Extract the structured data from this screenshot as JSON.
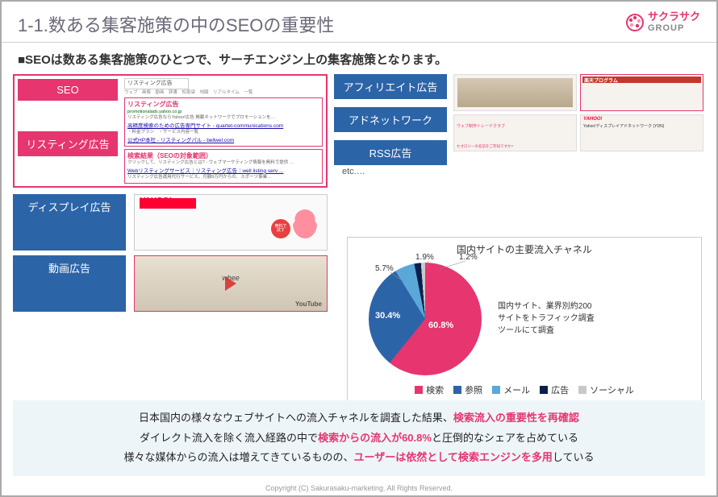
{
  "header": {
    "title": "1-1.数ある集客施策の中のSEOの重要性",
    "logo_main": "サクラサク",
    "logo_sub": "GROUP"
  },
  "subtitle": "■SEOは数ある集客施策のひとつで、サーチエンジン上の集客施策となります。",
  "left_box": {
    "tag_seo": "SEO",
    "tag_listing": "リスティング広告",
    "search_input": "リスティング広告",
    "ad_title": "リスティング広告",
    "ad_url": "promotionalads.yahoo.co.jp",
    "ad_blurb": "リスティング広告ならYahoo!広告 掲載ネットワークでプロモーションを…",
    "ad_link": "高精度検索のための広告専門サイト - quartet-communications.com",
    "ad_link2": "公式HP本社 - リスティングパル - bellwel.com",
    "org_title": "検索結果（SEOの対象範囲）",
    "org_blurb": "クリックして、リスティング広告とは? - ウェブマーケティング情報を無料で提供 …",
    "org_link": "Webリスティングサービス｜リスティング広告｜well listing serv ..."
  },
  "row_display": "ディスプレイ広告",
  "row_video": "動画広告",
  "yahoo_label": "YAHOO!",
  "youtube_label": "YouTube",
  "whee_label": "whee",
  "mid": {
    "affiliate": "アフィリエイト広告",
    "adnetwork": "アドネットワーク",
    "rss": "RSS広告",
    "etc": "etc.…"
  },
  "mini_labels": {
    "a": "楽天プログラム",
    "b": "ウェブ制作トレードクラブ",
    "c": "セオロジーの名前をご存知ですか?",
    "d": "Yahoo!ディスプレイアドネットワーク (YDN)"
  },
  "chart": {
    "title": "国内サイトの主要流入チャネル",
    "note": "国内サイト、業界別約200サイトをトラフィック調査ツールにて調査",
    "type": "pie",
    "slices": [
      {
        "label": "検索",
        "value": 60.8,
        "color": "#e6356f"
      },
      {
        "label": "参照",
        "value": 30.4,
        "color": "#2c64a8"
      },
      {
        "label": "メール",
        "value": 5.7,
        "color": "#5aa8d8"
      },
      {
        "label": "広告",
        "value": 1.9,
        "color": "#0a1f4d"
      },
      {
        "label": "ソーシャル",
        "value": 1.2,
        "color": "#c9c9c9"
      }
    ],
    "legend_labels": [
      "検索",
      "参照",
      "メール",
      "広告",
      "ソーシャル"
    ],
    "value_labels": {
      "a": "60.8%",
      "b": "30.4%",
      "c": "5.7%",
      "d": "1.9%",
      "e": "1.2%"
    },
    "background_color": "#ffffff",
    "title_fontsize": 12,
    "label_fontsize": 11
  },
  "footer": {
    "line1a": "日本国内の様々なウェブサイトへの流入チャネルを調査した結果、",
    "line1b": "検索流入の重要性を再確認",
    "line2a": "ダイレクト流入を除く流入経路の中で",
    "line2b": "検索からの流入が60.8%",
    "line2c": "と圧倒的なシェアを占めている",
    "line3a": "様々な媒体からの流入は増えてきているものの、",
    "line3b": "ユーザーは依然として検索エンジンを多用",
    "line3c": "している"
  },
  "copyright": "Copyright (C) Sakurasaku-marketing. All Rights Reserved."
}
